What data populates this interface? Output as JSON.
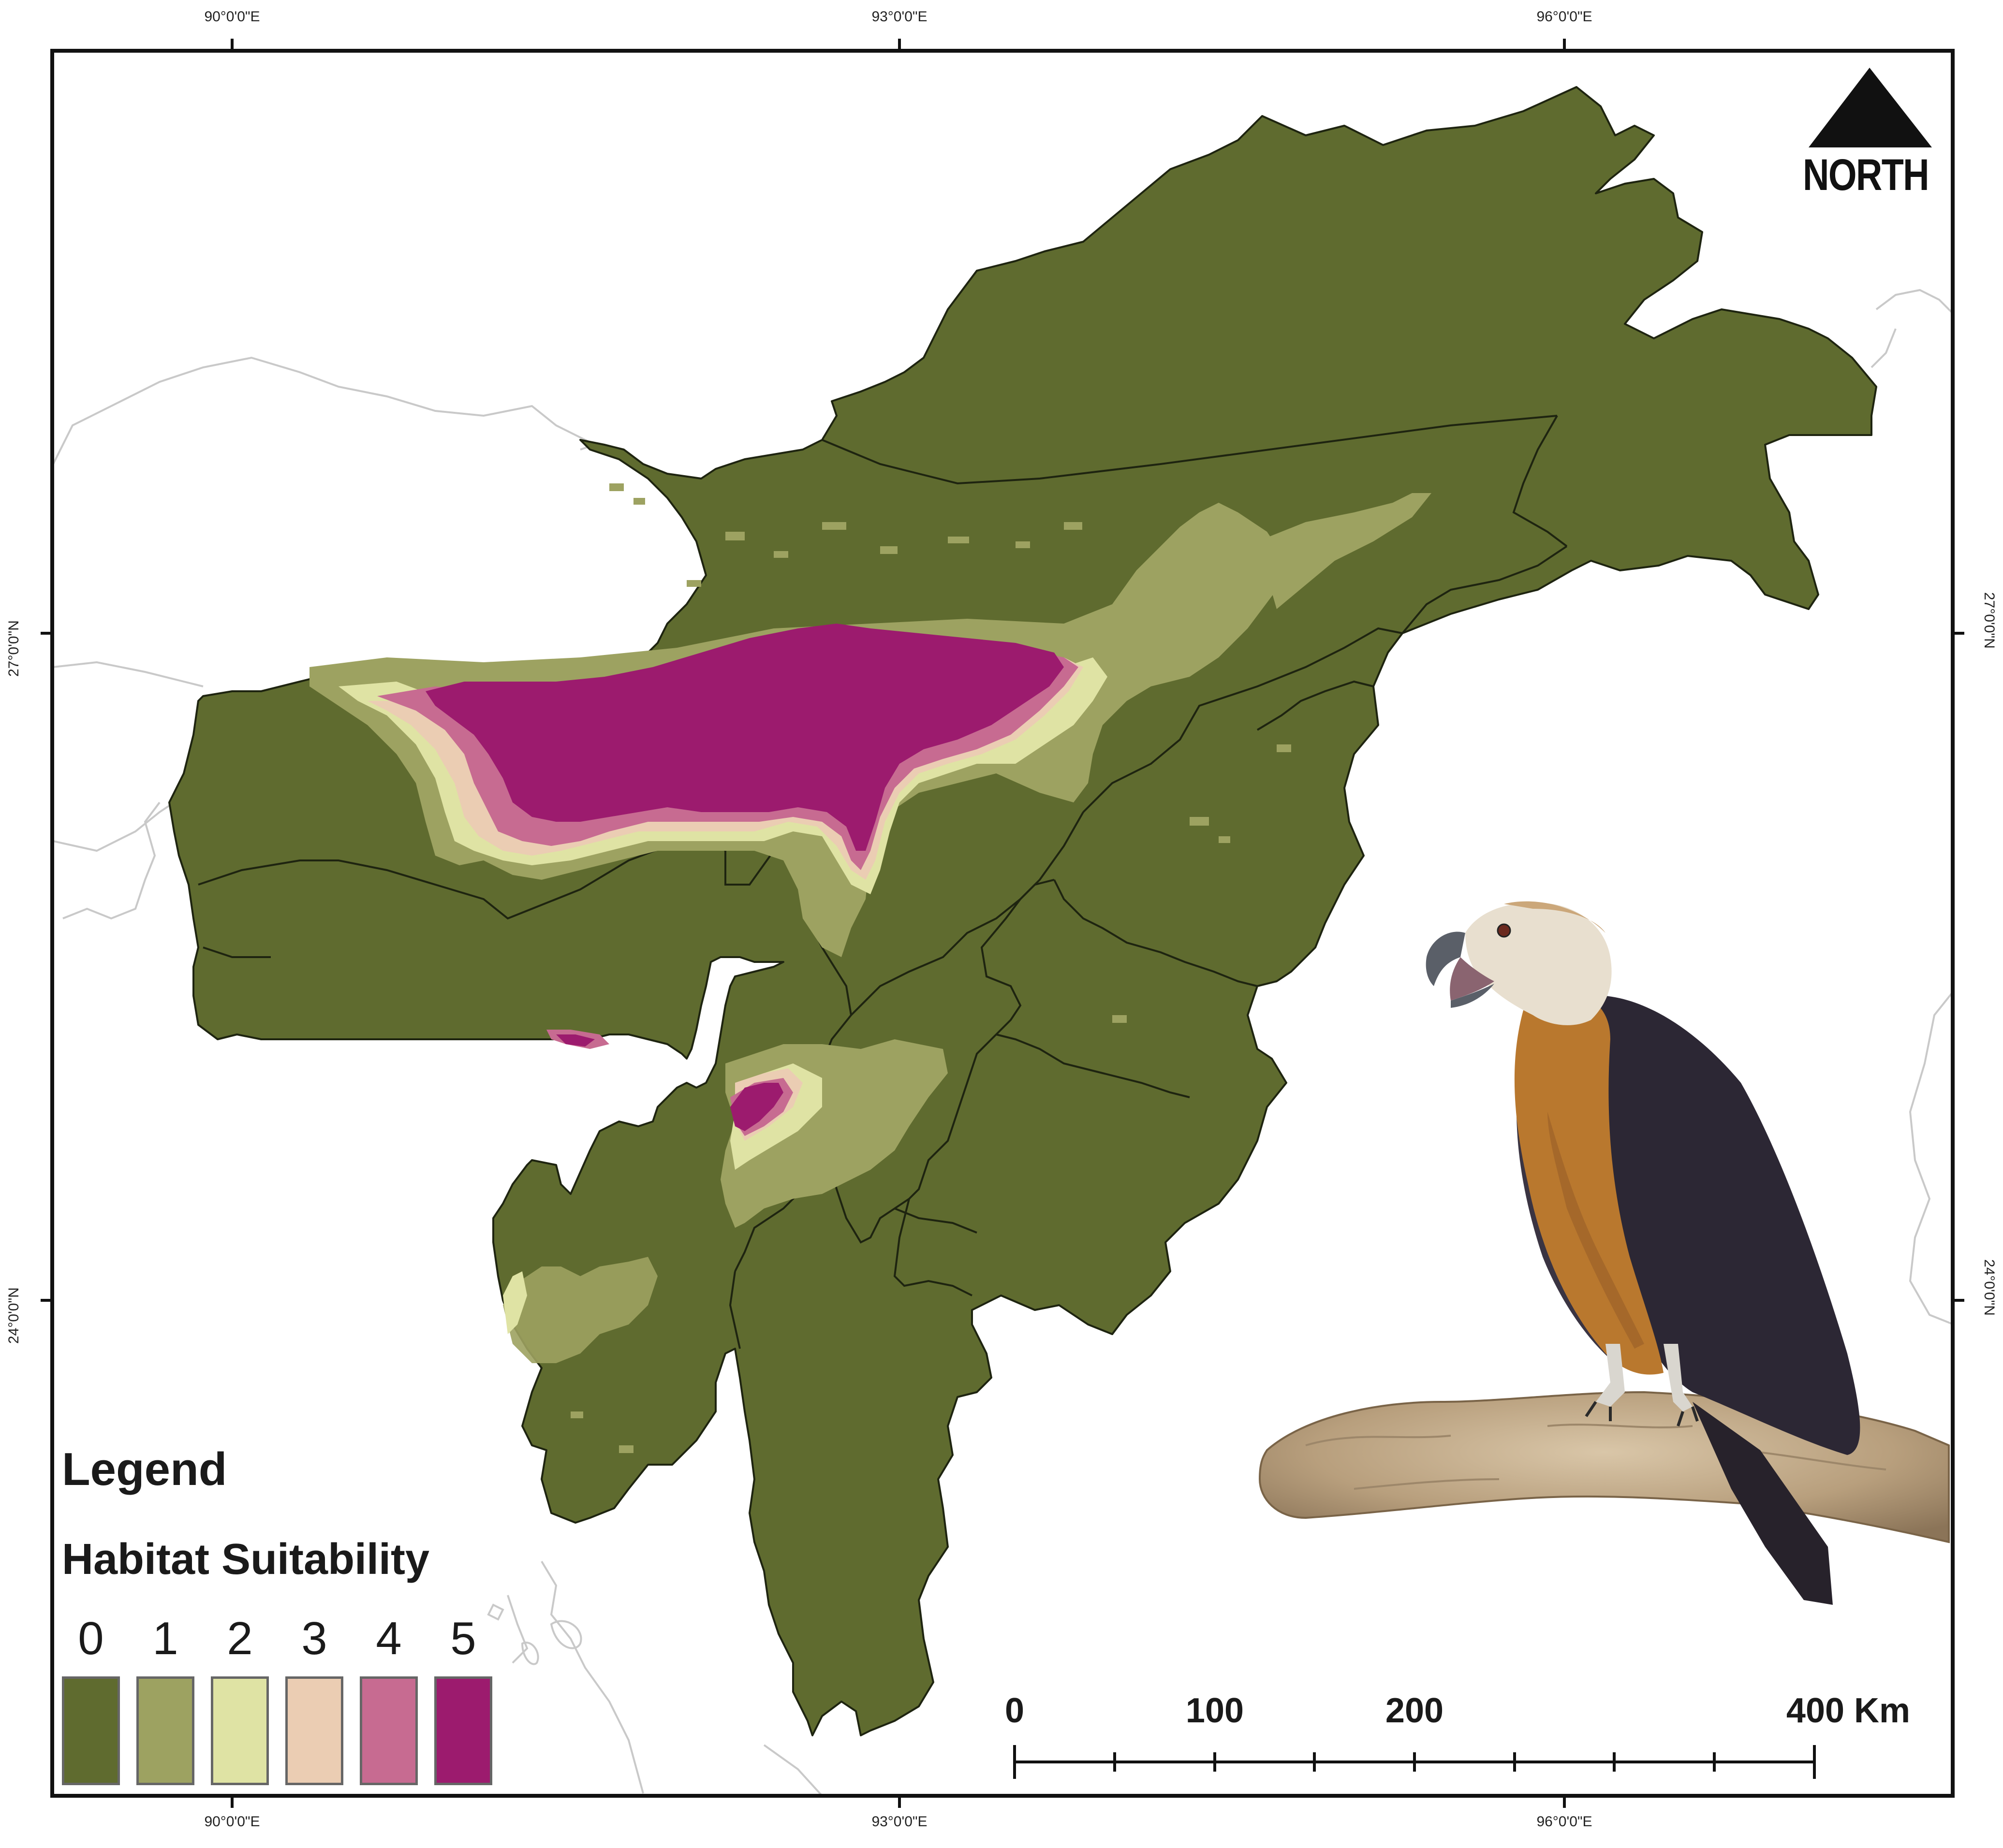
{
  "map": {
    "graticule": {
      "longitudes": [
        "90°0'0\"E",
        "93°0'0\"E",
        "96°0'0\"E"
      ],
      "latitudes": [
        "27°0'0\"N",
        "24°0'0\"N"
      ]
    },
    "north_arrow": {
      "label": "NORTH"
    },
    "legend": {
      "title": "Legend",
      "subtitle": "Habitat Suitability",
      "classes": [
        {
          "label": "0",
          "color": "#5f6b2f"
        },
        {
          "label": "1",
          "color": "#9da261"
        },
        {
          "label": "2",
          "color": "#dfe3a4"
        },
        {
          "label": "3",
          "color": "#ebcdb3"
        },
        {
          "label": "4",
          "color": "#c76b91"
        },
        {
          "label": "5",
          "color": "#9c1b6e"
        }
      ]
    },
    "scale_bar": {
      "labels": [
        "0",
        "100",
        "200",
        "400 Km"
      ],
      "values_km": [
        0,
        100,
        200,
        400
      ]
    },
    "colors": {
      "base_region": "#5f6b2f",
      "region_border": "#1e2410",
      "neighbor_outline": "#c9c9c9",
      "frame": "#111111"
    },
    "photo": {
      "subject": "bird-of-prey-on-branch"
    }
  }
}
